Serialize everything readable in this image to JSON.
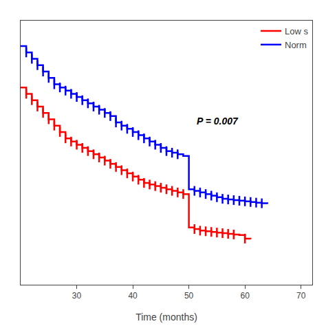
{
  "chart_data": {
    "type": "step",
    "xlabel": "Time (months)",
    "xlim": [
      20,
      72
    ],
    "ylim": [
      0.25,
      1.08
    ],
    "xticks": [
      30,
      40,
      50,
      60,
      70
    ],
    "yticks": [],
    "tick_labels": "x",
    "grid": false,
    "legend": "upper right",
    "annotations": [
      "P = 0.007"
    ],
    "series": [
      {
        "name": "Norm",
        "color": "#0000FF",
        "x": [
          20,
          21,
          22,
          23,
          24,
          25,
          26,
          27,
          28,
          29,
          30,
          31,
          32,
          33,
          34,
          35,
          36,
          37,
          38,
          39,
          40,
          41,
          42,
          43,
          44,
          45,
          46,
          47,
          48,
          49,
          50,
          51,
          52,
          53,
          54,
          55,
          56,
          57,
          58,
          59,
          60,
          61,
          62,
          63,
          64
        ],
        "values": [
          1.0,
          0.98,
          0.96,
          0.94,
          0.92,
          0.9,
          0.88,
          0.87,
          0.86,
          0.85,
          0.84,
          0.83,
          0.82,
          0.81,
          0.8,
          0.79,
          0.78,
          0.76,
          0.75,
          0.74,
          0.73,
          0.72,
          0.71,
          0.7,
          0.69,
          0.68,
          0.67,
          0.665,
          0.66,
          0.655,
          0.55,
          0.545,
          0.54,
          0.535,
          0.53,
          0.525,
          0.52,
          0.518,
          0.516,
          0.514,
          0.512,
          0.51,
          0.508,
          0.506,
          0.504
        ],
        "censors": {
          "x": [
            21,
            22,
            23,
            24,
            25,
            26,
            27,
            28,
            29,
            30,
            31,
            32,
            33,
            34,
            35,
            36,
            37,
            38,
            39,
            40,
            41,
            42,
            43,
            44,
            45,
            46,
            47,
            48,
            51,
            52,
            53,
            54,
            55,
            56,
            57,
            58,
            59,
            60,
            61,
            62,
            63
          ],
          "y": [
            0.98,
            0.96,
            0.94,
            0.92,
            0.9,
            0.88,
            0.87,
            0.86,
            0.85,
            0.84,
            0.83,
            0.82,
            0.81,
            0.8,
            0.79,
            0.78,
            0.76,
            0.75,
            0.74,
            0.73,
            0.72,
            0.71,
            0.7,
            0.69,
            0.68,
            0.67,
            0.665,
            0.66,
            0.545,
            0.54,
            0.535,
            0.53,
            0.525,
            0.52,
            0.518,
            0.516,
            0.514,
            0.512,
            0.51,
            0.508,
            0.506
          ]
        }
      },
      {
        "name": "Low s",
        "color": "#FF0000",
        "x": [
          20,
          21,
          22,
          23,
          24,
          25,
          26,
          27,
          28,
          29,
          30,
          31,
          32,
          33,
          34,
          35,
          36,
          37,
          38,
          39,
          40,
          41,
          42,
          43,
          44,
          45,
          46,
          47,
          48,
          49,
          50,
          51,
          52,
          53,
          54,
          55,
          56,
          57,
          58,
          59,
          60,
          61
        ],
        "values": [
          0.87,
          0.85,
          0.83,
          0.81,
          0.79,
          0.77,
          0.75,
          0.73,
          0.71,
          0.7,
          0.69,
          0.68,
          0.67,
          0.66,
          0.65,
          0.64,
          0.63,
          0.62,
          0.61,
          0.6,
          0.59,
          0.58,
          0.57,
          0.565,
          0.56,
          0.555,
          0.55,
          0.545,
          0.54,
          0.535,
          0.43,
          0.425,
          0.42,
          0.418,
          0.416,
          0.414,
          0.412,
          0.41,
          0.408,
          0.406,
          0.395,
          0.393
        ],
        "censors": {
          "x": [
            21,
            22,
            23,
            24,
            25,
            26,
            27,
            28,
            29,
            30,
            31,
            32,
            33,
            34,
            35,
            36,
            37,
            38,
            39,
            40,
            41,
            42,
            43,
            44,
            45,
            46,
            47,
            48,
            49,
            51,
            52,
            53,
            54,
            55,
            56,
            57,
            58,
            60
          ],
          "y": [
            0.85,
            0.83,
            0.81,
            0.79,
            0.77,
            0.75,
            0.73,
            0.71,
            0.7,
            0.69,
            0.68,
            0.67,
            0.66,
            0.65,
            0.64,
            0.63,
            0.62,
            0.61,
            0.6,
            0.59,
            0.58,
            0.57,
            0.565,
            0.56,
            0.555,
            0.55,
            0.545,
            0.54,
            0.535,
            0.425,
            0.42,
            0.418,
            0.416,
            0.414,
            0.412,
            0.41,
            0.408,
            0.395
          ]
        }
      }
    ]
  }
}
